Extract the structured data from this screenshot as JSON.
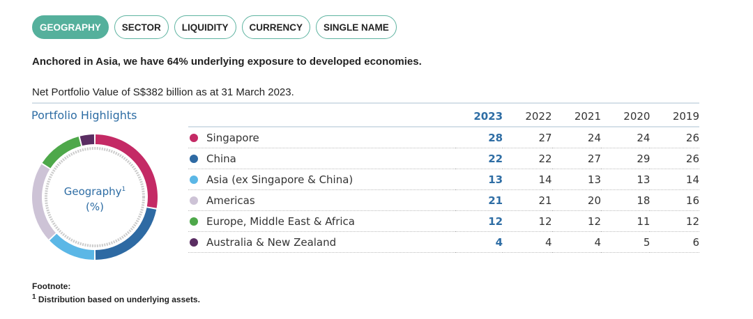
{
  "tabs": [
    {
      "label": "GEOGRAPHY",
      "active": true
    },
    {
      "label": "SECTOR"
    },
    {
      "label": "LIQUIDITY"
    },
    {
      "label": "CURRENCY"
    },
    {
      "label": "SINGLE NAME"
    }
  ],
  "lead": "Anchored in Asia, we have 64% underlying exposure to developed economies.",
  "subtitle": "Net Portfolio Value of S$382 billion as at 31 March 2023.",
  "highlights_title": "Portfolio Highlights",
  "chart_data": {
    "type": "pie",
    "title": "Geography",
    "title_sup": "1",
    "unit": "(%)",
    "years": [
      "2023",
      "2022",
      "2021",
      "2020",
      "2019"
    ],
    "series": [
      {
        "name": "Singapore",
        "color": "#c42a65",
        "values": [
          28,
          27,
          24,
          24,
          26
        ]
      },
      {
        "name": "China",
        "color": "#2e6aa3",
        "values": [
          22,
          22,
          27,
          29,
          26
        ]
      },
      {
        "name": "Asia (ex Singapore & China)",
        "color": "#5bb7e6",
        "values": [
          13,
          14,
          13,
          13,
          14
        ]
      },
      {
        "name": "Americas",
        "color": "#cdc3d6",
        "values": [
          21,
          21,
          20,
          18,
          16
        ]
      },
      {
        "name": "Europe, Middle East & Africa",
        "color": "#4ea84a",
        "values": [
          12,
          12,
          12,
          11,
          12
        ]
      },
      {
        "name": "Australia & New Zealand",
        "color": "#5a2d62",
        "values": [
          4,
          4,
          4,
          5,
          6
        ]
      }
    ]
  },
  "footnote": {
    "title": "Footnote:",
    "sup": "1",
    "text": "Distribution based on underlying assets."
  }
}
